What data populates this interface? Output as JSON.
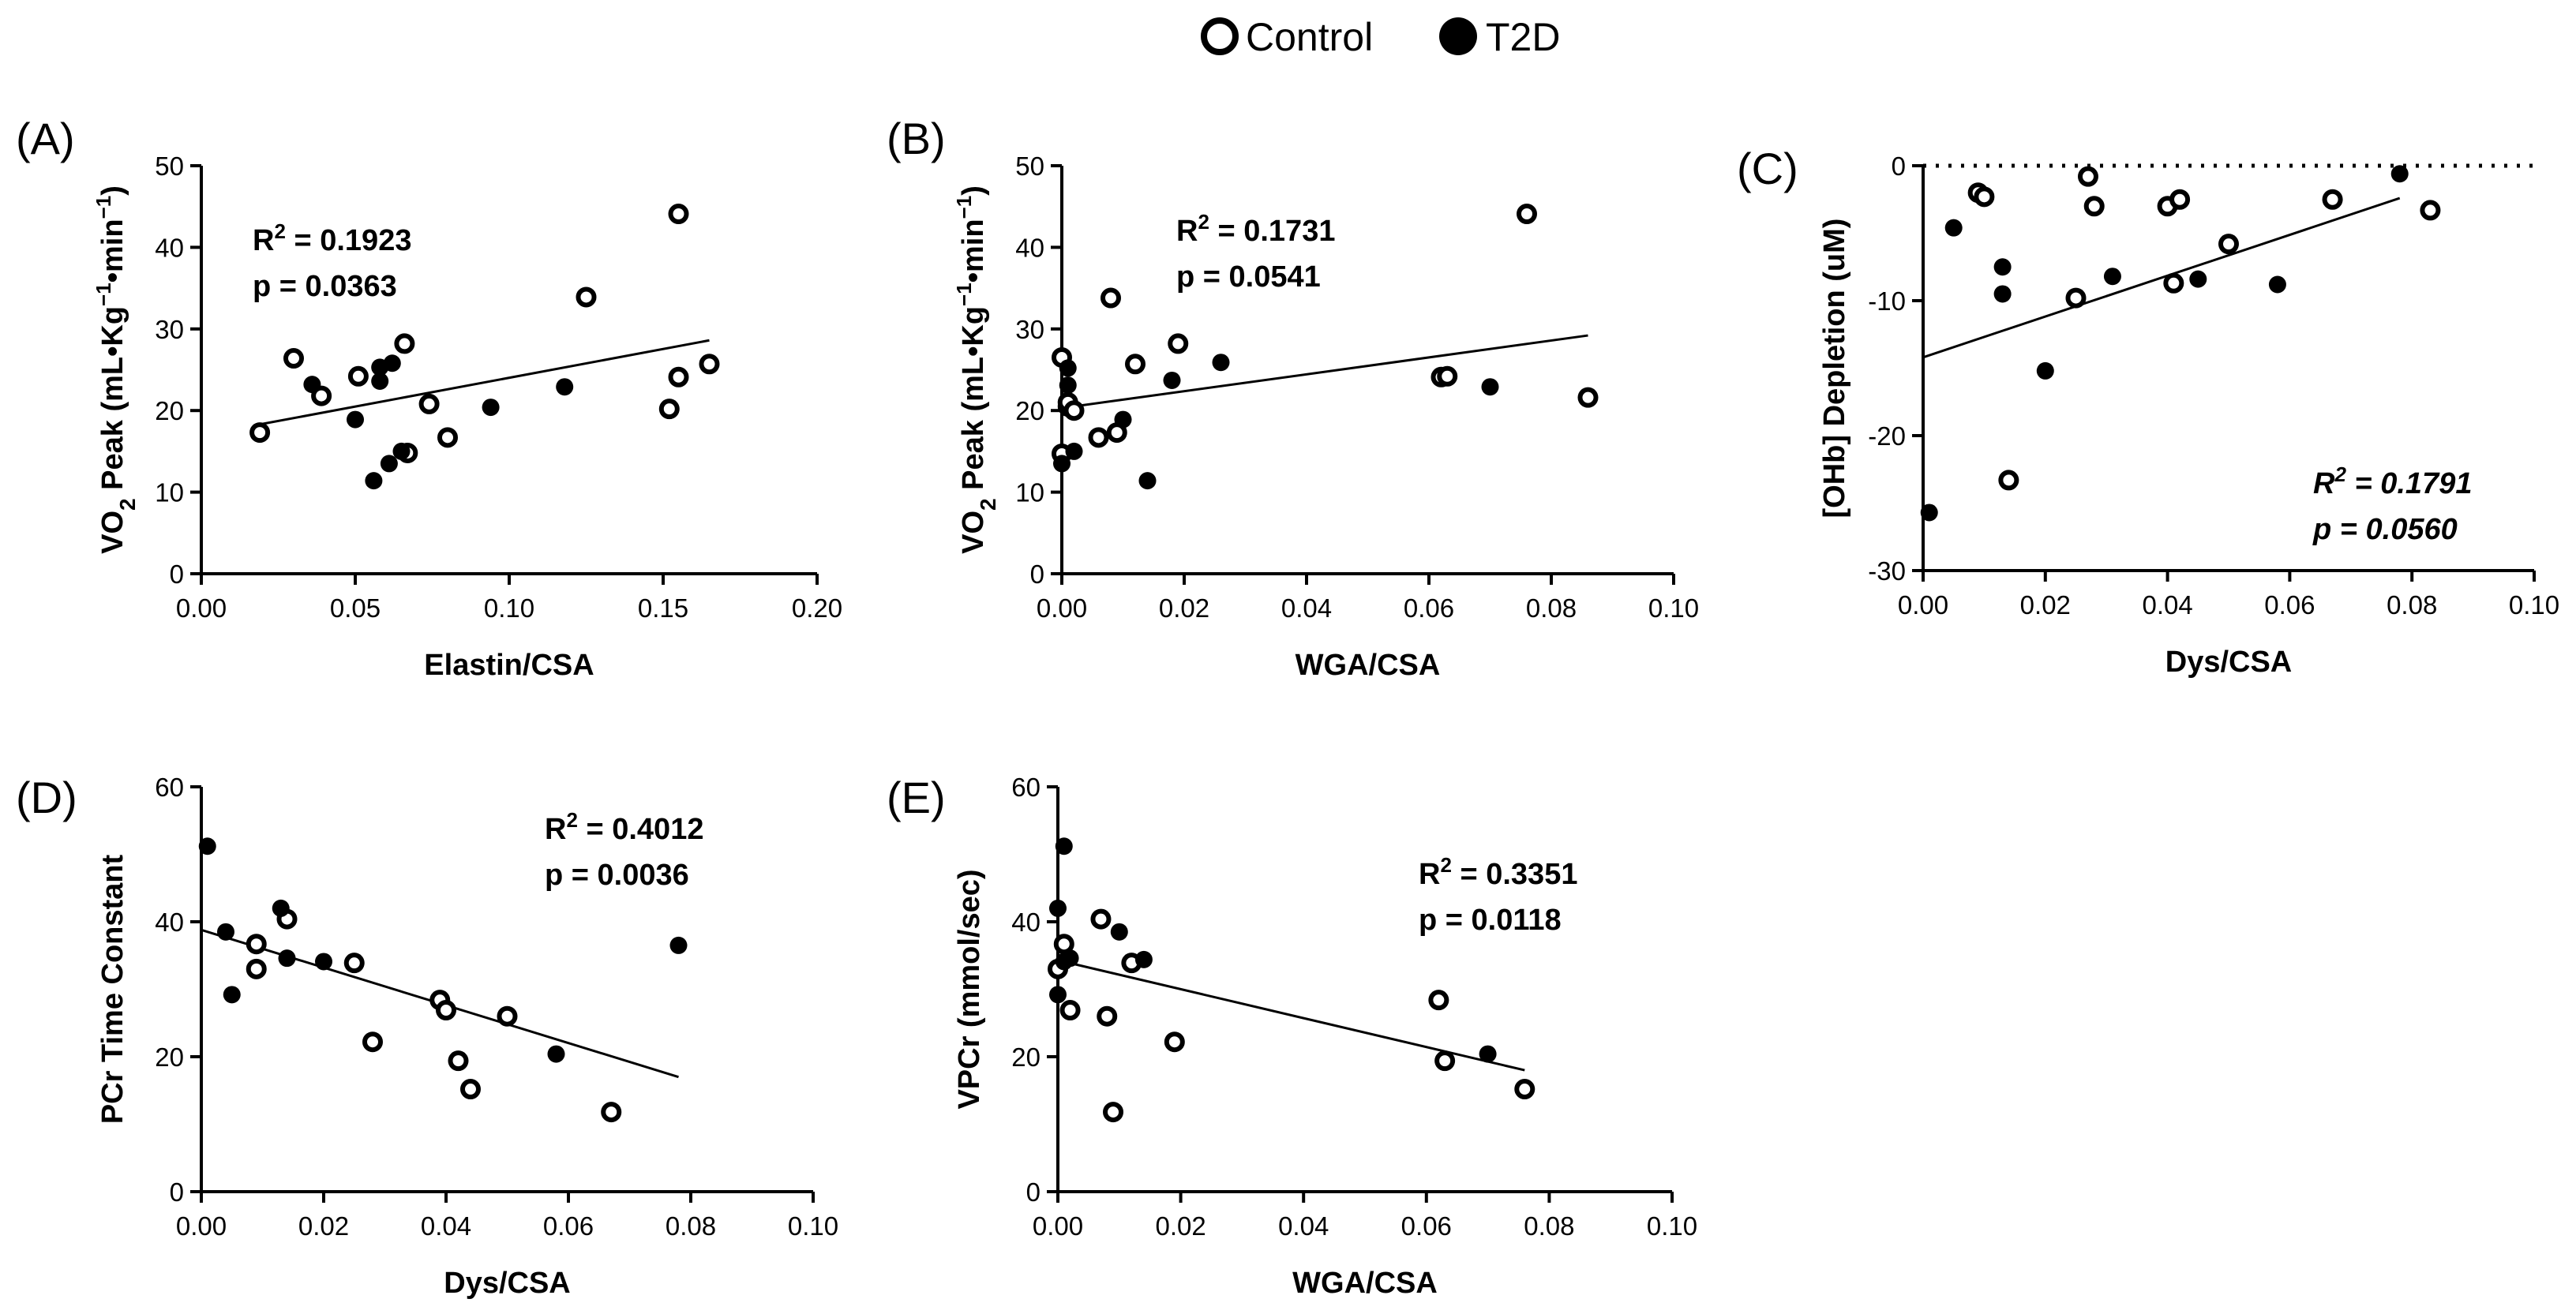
{
  "legend": {
    "control_label": "Control",
    "t2d_label": "T2D"
  },
  "chart_data": [
    {
      "type": "scatter",
      "panel_label": "(A)",
      "xlabel": "Elastin/CSA",
      "ylabel": "VO₂ Peak (mL•Kg⁻¹•min⁻¹)",
      "xlim": [
        0,
        0.2
      ],
      "ylim": [
        0,
        50
      ],
      "xticks": [
        "0.00",
        "0.05",
        "0.10",
        "0.15",
        "0.20"
      ],
      "yticks": [
        "0",
        "10",
        "20",
        "30",
        "40",
        "50"
      ],
      "stat_r2": "R² = 0.1923",
      "stat_p": "p = 0.0363",
      "stat_italic": false,
      "stat_pos": "top-left",
      "trendline": {
        "x": [
          0.019,
          0.165
        ],
        "y": [
          18.3,
          28.6
        ]
      },
      "series": [
        {
          "name": "Control",
          "x": [
            0.019,
            0.03,
            0.039,
            0.051,
            0.066,
            0.074,
            0.08,
            0.067,
            0.125,
            0.152,
            0.155,
            0.155,
            0.165
          ],
          "y": [
            17.3,
            26.4,
            21.8,
            24.2,
            28.2,
            20.8,
            16.7,
            14.8,
            33.9,
            20.2,
            24.1,
            44.1,
            25.7
          ]
        },
        {
          "name": "T2D",
          "x": [
            0.036,
            0.05,
            0.056,
            0.058,
            0.058,
            0.061,
            0.062,
            0.065,
            0.094,
            0.118
          ],
          "y": [
            23.2,
            18.9,
            11.4,
            23.6,
            25.3,
            13.5,
            25.8,
            15.0,
            20.4,
            22.9
          ]
        }
      ]
    },
    {
      "type": "scatter",
      "panel_label": "(B)",
      "xlabel": "WGA/CSA",
      "ylabel": "VO₂ Peak (mL•Kg⁻¹•min⁻¹)",
      "xlim": [
        0,
        0.1
      ],
      "ylim": [
        0,
        50
      ],
      "xticks": [
        "0.00",
        "0.02",
        "0.04",
        "0.06",
        "0.08",
        "0.10"
      ],
      "yticks": [
        "0",
        "10",
        "20",
        "30",
        "40",
        "50"
      ],
      "stat_r2": "R² = 0.1731",
      "stat_p": "p = 0.0541",
      "stat_italic": false,
      "stat_pos": "top-center",
      "trendline": {
        "x": [
          0.0,
          0.086
        ],
        "y": [
          20.3,
          29.2
        ]
      },
      "series": [
        {
          "name": "Control",
          "x": [
            0.0,
            0.0,
            0.001,
            0.001,
            0.002,
            0.006,
            0.008,
            0.009,
            0.012,
            0.019,
            0.062,
            0.063,
            0.076,
            0.086
          ],
          "y": [
            26.5,
            14.7,
            20.5,
            21.0,
            20.0,
            16.7,
            33.8,
            17.3,
            25.7,
            28.2,
            24.1,
            24.2,
            44.1,
            21.6
          ]
        },
        {
          "name": "T2D",
          "x": [
            0.0,
            0.001,
            0.001,
            0.002,
            0.01,
            0.014,
            0.018,
            0.026,
            0.07
          ],
          "y": [
            13.5,
            23.1,
            25.2,
            15.0,
            18.9,
            11.4,
            23.7,
            25.9,
            22.9
          ]
        }
      ]
    },
    {
      "type": "scatter",
      "panel_label": "(C)",
      "xlabel": "Dys/CSA",
      "ylabel": "[OHb] Depletion (uM)",
      "xlim": [
        0,
        0.1
      ],
      "ylim": [
        -30,
        0
      ],
      "xticks": [
        "0.00",
        "0.02",
        "0.04",
        "0.06",
        "0.08",
        "0.10"
      ],
      "yticks": [
        "-30",
        "-20",
        "-10",
        "0"
      ],
      "stat_r2": "R² = 0.1791",
      "stat_p": "p = 0.0560",
      "stat_italic": true,
      "stat_pos": "bottom-right",
      "trendline": {
        "x": [
          0.0,
          0.078
        ],
        "y": [
          -14.2,
          -2.4
        ]
      },
      "series": [
        {
          "name": "Control",
          "x": [
            0.009,
            0.01,
            0.014,
            0.025,
            0.027,
            0.028,
            0.04,
            0.041,
            0.042,
            0.05,
            0.067,
            0.083
          ],
          "y": [
            -2.0,
            -2.3,
            -23.3,
            -9.8,
            -0.8,
            -3.0,
            -3.0,
            -8.7,
            -2.5,
            -5.8,
            -2.5,
            -3.3
          ]
        },
        {
          "name": "T2D",
          "x": [
            0.001,
            0.005,
            0.013,
            0.013,
            0.02,
            0.031,
            0.045,
            0.058,
            0.078
          ],
          "y": [
            -25.7,
            -4.6,
            -7.5,
            -9.5,
            -15.2,
            -8.2,
            -8.4,
            -8.8,
            -0.6
          ]
        }
      ]
    },
    {
      "type": "scatter",
      "panel_label": "(D)",
      "xlabel": "Dys/CSA",
      "ylabel": "PCr Time Constant",
      "xlim": [
        0,
        0.1
      ],
      "ylim": [
        0,
        60
      ],
      "xticks": [
        "0.00",
        "0.02",
        "0.04",
        "0.06",
        "0.08",
        "0.10"
      ],
      "yticks": [
        "0",
        "20",
        "40",
        "60"
      ],
      "stat_r2": "R² = 0.4012",
      "stat_p": "p = 0.0036",
      "stat_italic": false,
      "stat_pos": "top-right",
      "trendline": {
        "x": [
          0.0,
          0.078
        ],
        "y": [
          38.8,
          17.0
        ]
      },
      "series": [
        {
          "name": "Control",
          "x": [
            0.009,
            0.009,
            0.014,
            0.025,
            0.028,
            0.039,
            0.04,
            0.042,
            0.044,
            0.05,
            0.067
          ],
          "y": [
            33.0,
            36.7,
            40.4,
            33.9,
            22.2,
            28.4,
            26.9,
            19.4,
            15.2,
            26.0,
            11.8
          ]
        },
        {
          "name": "T2D",
          "x": [
            0.001,
            0.004,
            0.005,
            0.013,
            0.014,
            0.02,
            0.058,
            0.078
          ],
          "y": [
            51.2,
            38.5,
            29.2,
            42.0,
            34.6,
            34.1,
            20.4,
            36.5
          ]
        }
      ]
    },
    {
      "type": "scatter",
      "panel_label": "(E)",
      "xlabel": "WGA/CSA",
      "ylabel": "VPCr  (mmol/sec)",
      "xlim": [
        0,
        0.1
      ],
      "ylim": [
        0,
        60
      ],
      "xticks": [
        "0.00",
        "0.02",
        "0.04",
        "0.06",
        "0.08",
        "0.10"
      ],
      "yticks": [
        "0",
        "20",
        "40",
        "60"
      ],
      "stat_r2": "R² = 0.3351",
      "stat_p": "p = 0.0118",
      "stat_italic": false,
      "stat_pos": "top-right",
      "trendline": {
        "x": [
          0.0,
          0.076
        ],
        "y": [
          34.3,
          18.0
        ]
      },
      "series": [
        {
          "name": "Control",
          "x": [
            0.0,
            0.001,
            0.002,
            0.007,
            0.008,
            0.009,
            0.012,
            0.019,
            0.062,
            0.063,
            0.076
          ],
          "y": [
            33.0,
            36.7,
            26.9,
            40.4,
            26.0,
            11.8,
            33.9,
            22.2,
            28.4,
            19.4,
            15.2
          ]
        },
        {
          "name": "T2D",
          "x": [
            0.0,
            0.0,
            0.001,
            0.001,
            0.002,
            0.01,
            0.014,
            0.07
          ],
          "y": [
            42.0,
            29.2,
            51.2,
            34.1,
            34.6,
            38.5,
            34.4,
            20.4
          ]
        }
      ]
    }
  ]
}
